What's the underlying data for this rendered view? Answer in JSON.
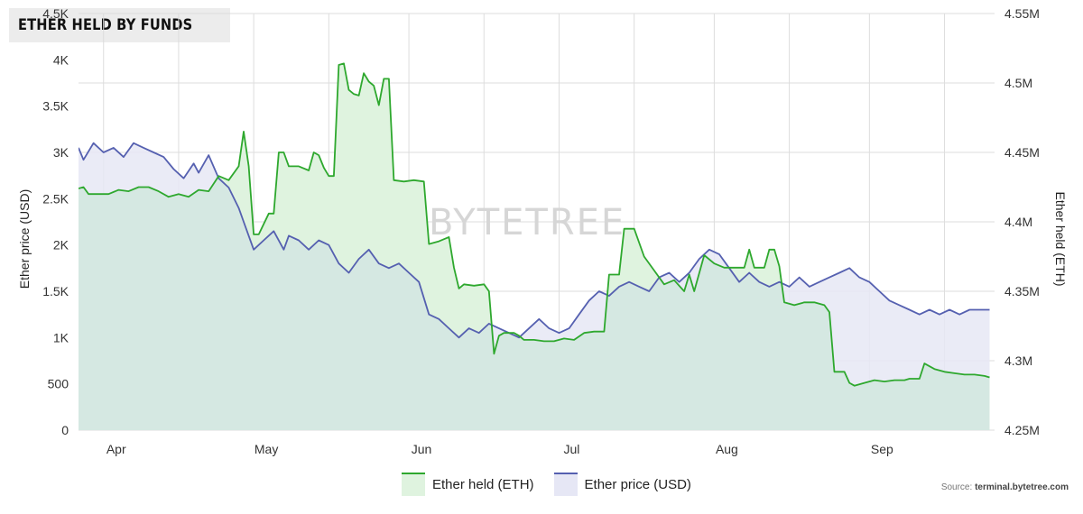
{
  "title": "ETHER HELD BY FUNDS",
  "source": {
    "prefix": "Source: ",
    "site": "terminal.bytetree.com"
  },
  "watermark": "BYTETREE",
  "colors": {
    "held_line": "#2ea82e",
    "held_fill": "#dff3df",
    "price_line": "#5560b0",
    "price_fill": "#e6e7f5",
    "overlap_fill": "#d5e8e2",
    "grid": "#dddddd"
  },
  "chart_data": {
    "type": "area",
    "title": "ETHER HELD BY FUNDS",
    "ylabel_left": "Ether price (USD)",
    "ylabel_right": "Ether held (ETH)",
    "ylim_left": [
      0,
      4500
    ],
    "ylim_right": [
      4250000,
      4550000
    ],
    "x_range": [
      "2021-03-27",
      "2021-09-26"
    ],
    "x_ticks": [
      {
        "date": "2021-04-01",
        "label": "Apr"
      },
      {
        "date": "2021-05-01",
        "label": "May"
      },
      {
        "date": "2021-06-01",
        "label": "Jun"
      },
      {
        "date": "2021-07-01",
        "label": "Jul"
      },
      {
        "date": "2021-08-01",
        "label": "Aug"
      },
      {
        "date": "2021-09-01",
        "label": "Sep"
      }
    ],
    "y_ticks_left": [
      {
        "v": 0,
        "label": "0"
      },
      {
        "v": 500,
        "label": "500"
      },
      {
        "v": 1000,
        "label": "1K"
      },
      {
        "v": 1500,
        "label": "1.5K"
      },
      {
        "v": 2000,
        "label": "2K"
      },
      {
        "v": 2500,
        "label": "2.5K"
      },
      {
        "v": 3000,
        "label": "3K"
      },
      {
        "v": 3500,
        "label": "3.5K"
      },
      {
        "v": 4000,
        "label": "4K"
      },
      {
        "v": 4500,
        "label": "4.5K"
      }
    ],
    "y_ticks_right": [
      {
        "v": 4250000,
        "label": "4.25M"
      },
      {
        "v": 4300000,
        "label": "4.3M"
      },
      {
        "v": 4350000,
        "label": "4.35M"
      },
      {
        "v": 4400000,
        "label": "4.4M"
      },
      {
        "v": 4450000,
        "label": "4.45M"
      },
      {
        "v": 4500000,
        "label": "4.5M"
      },
      {
        "v": 4550000,
        "label": "4.55M"
      }
    ],
    "grid": true,
    "legend_position": "bottom-center",
    "series": [
      {
        "name": "Ether held (ETH)",
        "axis": "right",
        "data": [
          [
            "2021-03-27",
            4424000
          ],
          [
            "2021-03-28",
            4425000
          ],
          [
            "2021-03-29",
            4420000
          ],
          [
            "2021-03-31",
            4420000
          ],
          [
            "2021-04-02",
            4420000
          ],
          [
            "2021-04-04",
            4423000
          ],
          [
            "2021-04-06",
            4422000
          ],
          [
            "2021-04-08",
            4425000
          ],
          [
            "2021-04-10",
            4425000
          ],
          [
            "2021-04-12",
            4422000
          ],
          [
            "2021-04-14",
            4418000
          ],
          [
            "2021-04-16",
            4420000
          ],
          [
            "2021-04-18",
            4418000
          ],
          [
            "2021-04-20",
            4423000
          ],
          [
            "2021-04-22",
            4422000
          ],
          [
            "2021-04-24",
            4433000
          ],
          [
            "2021-04-26",
            4430000
          ],
          [
            "2021-04-28",
            4440000
          ],
          [
            "2021-04-29",
            4465000
          ],
          [
            "2021-04-30",
            4440000
          ],
          [
            "2021-05-01",
            4391000
          ],
          [
            "2021-05-02",
            4391000
          ],
          [
            "2021-05-04",
            4406000
          ],
          [
            "2021-05-05",
            4406000
          ],
          [
            "2021-05-06",
            4450000
          ],
          [
            "2021-05-07",
            4450000
          ],
          [
            "2021-05-08",
            4440000
          ],
          [
            "2021-05-10",
            4440000
          ],
          [
            "2021-05-12",
            4437000
          ],
          [
            "2021-05-13",
            4450000
          ],
          [
            "2021-05-14",
            4448000
          ],
          [
            "2021-05-15",
            4439000
          ],
          [
            "2021-05-16",
            4433000
          ],
          [
            "2021-05-17",
            4433000
          ],
          [
            "2021-05-18",
            4513000
          ],
          [
            "2021-05-19",
            4514000
          ],
          [
            "2021-05-20",
            4495000
          ],
          [
            "2021-05-21",
            4492000
          ],
          [
            "2021-05-22",
            4491000
          ],
          [
            "2021-05-23",
            4507000
          ],
          [
            "2021-05-24",
            4501000
          ],
          [
            "2021-05-25",
            4498000
          ],
          [
            "2021-05-26",
            4484000
          ],
          [
            "2021-05-27",
            4503000
          ],
          [
            "2021-05-28",
            4503000
          ],
          [
            "2021-05-29",
            4430000
          ],
          [
            "2021-05-31",
            4429000
          ],
          [
            "2021-06-02",
            4430000
          ],
          [
            "2021-06-04",
            4429000
          ],
          [
            "2021-06-05",
            4384000
          ],
          [
            "2021-06-07",
            4386000
          ],
          [
            "2021-06-09",
            4389000
          ],
          [
            "2021-06-10",
            4367000
          ],
          [
            "2021-06-11",
            4352000
          ],
          [
            "2021-06-12",
            4355000
          ],
          [
            "2021-06-14",
            4354000
          ],
          [
            "2021-06-16",
            4355000
          ],
          [
            "2021-06-17",
            4350000
          ],
          [
            "2021-06-18",
            4305000
          ],
          [
            "2021-06-19",
            4318000
          ],
          [
            "2021-06-20",
            4320000
          ],
          [
            "2021-06-22",
            4320000
          ],
          [
            "2021-06-23",
            4318000
          ],
          [
            "2021-06-24",
            4315000
          ],
          [
            "2021-06-26",
            4315000
          ],
          [
            "2021-06-28",
            4314000
          ],
          [
            "2021-06-30",
            4314000
          ],
          [
            "2021-07-02",
            4316000
          ],
          [
            "2021-07-04",
            4315000
          ],
          [
            "2021-07-06",
            4320000
          ],
          [
            "2021-07-08",
            4321000
          ],
          [
            "2021-07-10",
            4321000
          ],
          [
            "2021-07-11",
            4362000
          ],
          [
            "2021-07-13",
            4362000
          ],
          [
            "2021-07-14",
            4395000
          ],
          [
            "2021-07-16",
            4395000
          ],
          [
            "2021-07-18",
            4375000
          ],
          [
            "2021-07-20",
            4365000
          ],
          [
            "2021-07-22",
            4355000
          ],
          [
            "2021-07-24",
            4358000
          ],
          [
            "2021-07-26",
            4350000
          ],
          [
            "2021-07-27",
            4362000
          ],
          [
            "2021-07-28",
            4350000
          ],
          [
            "2021-07-30",
            4376000
          ],
          [
            "2021-08-01",
            4370000
          ],
          [
            "2021-08-03",
            4367000
          ],
          [
            "2021-08-05",
            4367000
          ],
          [
            "2021-08-07",
            4367000
          ],
          [
            "2021-08-08",
            4380000
          ],
          [
            "2021-08-09",
            4367000
          ],
          [
            "2021-08-11",
            4367000
          ],
          [
            "2021-08-12",
            4380000
          ],
          [
            "2021-08-13",
            4380000
          ],
          [
            "2021-08-14",
            4368000
          ],
          [
            "2021-08-15",
            4342000
          ],
          [
            "2021-08-17",
            4340000
          ],
          [
            "2021-08-19",
            4342000
          ],
          [
            "2021-08-21",
            4342000
          ],
          [
            "2021-08-23",
            4340000
          ],
          [
            "2021-08-24",
            4335000
          ],
          [
            "2021-08-25",
            4292000
          ],
          [
            "2021-08-27",
            4292000
          ],
          [
            "2021-08-28",
            4284000
          ],
          [
            "2021-08-29",
            4282000
          ],
          [
            "2021-08-31",
            4284000
          ],
          [
            "2021-09-02",
            4286000
          ],
          [
            "2021-09-04",
            4285000
          ],
          [
            "2021-09-06",
            4286000
          ],
          [
            "2021-09-08",
            4286000
          ],
          [
            "2021-09-09",
            4287000
          ],
          [
            "2021-09-11",
            4287000
          ],
          [
            "2021-09-12",
            4298000
          ],
          [
            "2021-09-14",
            4294000
          ],
          [
            "2021-09-16",
            4292000
          ],
          [
            "2021-09-18",
            4291000
          ],
          [
            "2021-09-20",
            4290000
          ],
          [
            "2021-09-22",
            4290000
          ],
          [
            "2021-09-24",
            4289000
          ],
          [
            "2021-09-25",
            4288000
          ]
        ]
      },
      {
        "name": "Ether price (USD)",
        "axis": "left",
        "data": [
          [
            "2021-03-27",
            3050
          ],
          [
            "2021-03-28",
            2920
          ],
          [
            "2021-03-30",
            3100
          ],
          [
            "2021-04-01",
            3000
          ],
          [
            "2021-04-03",
            3050
          ],
          [
            "2021-04-05",
            2950
          ],
          [
            "2021-04-07",
            3100
          ],
          [
            "2021-04-09",
            3050
          ],
          [
            "2021-04-11",
            3000
          ],
          [
            "2021-04-13",
            2950
          ],
          [
            "2021-04-15",
            2820
          ],
          [
            "2021-04-17",
            2720
          ],
          [
            "2021-04-19",
            2880
          ],
          [
            "2021-04-20",
            2780
          ],
          [
            "2021-04-22",
            2970
          ],
          [
            "2021-04-24",
            2720
          ],
          [
            "2021-04-26",
            2620
          ],
          [
            "2021-04-28",
            2400
          ],
          [
            "2021-04-29",
            2250
          ],
          [
            "2021-05-01",
            1950
          ],
          [
            "2021-05-03",
            2050
          ],
          [
            "2021-05-05",
            2150
          ],
          [
            "2021-05-07",
            1950
          ],
          [
            "2021-05-08",
            2100
          ],
          [
            "2021-05-10",
            2050
          ],
          [
            "2021-05-12",
            1950
          ],
          [
            "2021-05-14",
            2050
          ],
          [
            "2021-05-16",
            2000
          ],
          [
            "2021-05-18",
            1800
          ],
          [
            "2021-05-20",
            1700
          ],
          [
            "2021-05-22",
            1850
          ],
          [
            "2021-05-24",
            1950
          ],
          [
            "2021-05-26",
            1800
          ],
          [
            "2021-05-28",
            1750
          ],
          [
            "2021-05-30",
            1800
          ],
          [
            "2021-06-01",
            1700
          ],
          [
            "2021-06-03",
            1600
          ],
          [
            "2021-06-05",
            1250
          ],
          [
            "2021-06-07",
            1200
          ],
          [
            "2021-06-09",
            1100
          ],
          [
            "2021-06-11",
            1000
          ],
          [
            "2021-06-13",
            1100
          ],
          [
            "2021-06-15",
            1050
          ],
          [
            "2021-06-17",
            1150
          ],
          [
            "2021-06-19",
            1100
          ],
          [
            "2021-06-21",
            1050
          ],
          [
            "2021-06-23",
            1000
          ],
          [
            "2021-06-25",
            1100
          ],
          [
            "2021-06-27",
            1200
          ],
          [
            "2021-06-29",
            1100
          ],
          [
            "2021-07-01",
            1050
          ],
          [
            "2021-07-03",
            1100
          ],
          [
            "2021-07-05",
            1250
          ],
          [
            "2021-07-07",
            1400
          ],
          [
            "2021-07-09",
            1500
          ],
          [
            "2021-07-11",
            1450
          ],
          [
            "2021-07-13",
            1550
          ],
          [
            "2021-07-15",
            1600
          ],
          [
            "2021-07-17",
            1550
          ],
          [
            "2021-07-19",
            1500
          ],
          [
            "2021-07-21",
            1650
          ],
          [
            "2021-07-23",
            1700
          ],
          [
            "2021-07-25",
            1600
          ],
          [
            "2021-07-27",
            1700
          ],
          [
            "2021-07-29",
            1850
          ],
          [
            "2021-07-31",
            1950
          ],
          [
            "2021-08-02",
            1900
          ],
          [
            "2021-08-04",
            1750
          ],
          [
            "2021-08-06",
            1600
          ],
          [
            "2021-08-08",
            1700
          ],
          [
            "2021-08-10",
            1600
          ],
          [
            "2021-08-12",
            1550
          ],
          [
            "2021-08-14",
            1600
          ],
          [
            "2021-08-16",
            1550
          ],
          [
            "2021-08-18",
            1650
          ],
          [
            "2021-08-20",
            1550
          ],
          [
            "2021-08-22",
            1600
          ],
          [
            "2021-08-24",
            1650
          ],
          [
            "2021-08-26",
            1700
          ],
          [
            "2021-08-28",
            1750
          ],
          [
            "2021-08-30",
            1650
          ],
          [
            "2021-09-01",
            1600
          ],
          [
            "2021-09-03",
            1500
          ],
          [
            "2021-09-05",
            1400
          ],
          [
            "2021-09-07",
            1350
          ],
          [
            "2021-09-09",
            1300
          ],
          [
            "2021-09-11",
            1250
          ],
          [
            "2021-09-13",
            1300
          ],
          [
            "2021-09-15",
            1250
          ],
          [
            "2021-09-17",
            1300
          ],
          [
            "2021-09-19",
            1250
          ],
          [
            "2021-09-21",
            1300
          ],
          [
            "2021-09-23",
            1300
          ],
          [
            "2021-09-25",
            1300
          ]
        ]
      }
    ]
  }
}
